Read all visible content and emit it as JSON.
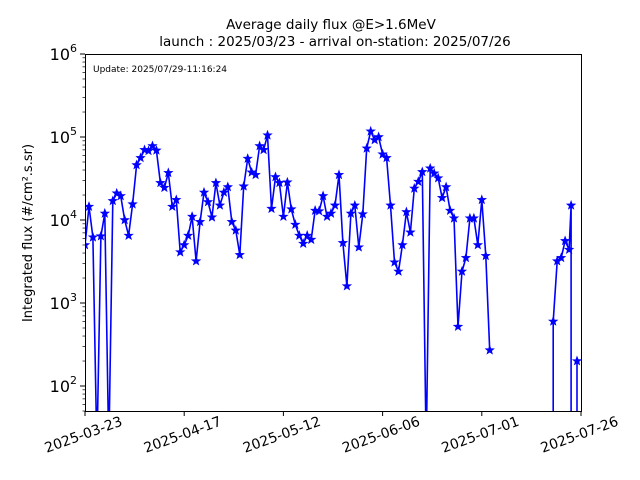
{
  "chart_data": {
    "type": "line",
    "title_line1": "Average daily flux @E>1.6MeV",
    "title_line2": "launch : 2025/03/23 - arrival on-station: 2025/07/26",
    "annotation": "Update: 2025/07/29-11:16:24",
    "ylabel": "Integrated flux (#/cm².s.sr)",
    "yscale": "log",
    "ylim": [
      50,
      1000000
    ],
    "xlim": [
      "2025-03-23",
      "2025-07-26"
    ],
    "xticks": [
      "2025-03-23",
      "2025-04-17",
      "2025-05-12",
      "2025-06-06",
      "2025-07-01",
      "2025-07-26"
    ],
    "yticks": [
      {
        "value": 100,
        "base": "10",
        "exp": "2"
      },
      {
        "value": 1000,
        "base": "10",
        "exp": "3"
      },
      {
        "value": 10000,
        "base": "10",
        "exp": "4"
      },
      {
        "value": 100000,
        "base": "10",
        "exp": "5"
      },
      {
        "value": 1000000,
        "base": "10",
        "exp": "6"
      }
    ],
    "grid": false,
    "legend": "none",
    "color": "#0000ff",
    "marker": "star",
    "series": [
      {
        "x": [
          "2025-03-23",
          "2025-03-24",
          "2025-03-25",
          "2025-03-26",
          "2025-03-27",
          "2025-03-28",
          "2025-03-29",
          "2025-03-30",
          "2025-03-31",
          "2025-04-01",
          "2025-04-02",
          "2025-04-03",
          "2025-04-04",
          "2025-04-05",
          "2025-04-06",
          "2025-04-07",
          "2025-04-08",
          "2025-04-09",
          "2025-04-10",
          "2025-04-11",
          "2025-04-12",
          "2025-04-13",
          "2025-04-14",
          "2025-04-15",
          "2025-04-16",
          "2025-04-17",
          "2025-04-18",
          "2025-04-19",
          "2025-04-20",
          "2025-04-21",
          "2025-04-22",
          "2025-04-23",
          "2025-04-24",
          "2025-04-25",
          "2025-04-26",
          "2025-04-27",
          "2025-04-28",
          "2025-04-29",
          "2025-04-30",
          "2025-05-01",
          "2025-05-02",
          "2025-05-03",
          "2025-05-04",
          "2025-05-05",
          "2025-05-06",
          "2025-05-07",
          "2025-05-08",
          "2025-05-09",
          "2025-05-10",
          "2025-05-11",
          "2025-05-12",
          "2025-05-13",
          "2025-05-14",
          "2025-05-15",
          "2025-05-16",
          "2025-05-17",
          "2025-05-18",
          "2025-05-19",
          "2025-05-20",
          "2025-05-21",
          "2025-05-22",
          "2025-05-23",
          "2025-05-24",
          "2025-05-25",
          "2025-05-26",
          "2025-05-27",
          "2025-05-28",
          "2025-05-29",
          "2025-05-30",
          "2025-05-31",
          "2025-06-01",
          "2025-06-02",
          "2025-06-03",
          "2025-06-04",
          "2025-06-05",
          "2025-06-06",
          "2025-06-07",
          "2025-06-08",
          "2025-06-09",
          "2025-06-10",
          "2025-06-11",
          "2025-06-12",
          "2025-06-13",
          "2025-06-14",
          "2025-06-15",
          "2025-06-16",
          "2025-06-17",
          "2025-06-18",
          "2025-06-19",
          "2025-06-20",
          "2025-06-21",
          "2025-06-22",
          "2025-06-23",
          "2025-06-24",
          "2025-06-25",
          "2025-06-26",
          "2025-06-27",
          "2025-06-28",
          "2025-06-29",
          "2025-06-30",
          "2025-07-01",
          "2025-07-02",
          "2025-07-03",
          "2025-07-04",
          "2025-07-05",
          "2025-07-06",
          "2025-07-07",
          "2025-07-08",
          "2025-07-09",
          "2025-07-10",
          "2025-07-11",
          "2025-07-12",
          "2025-07-13",
          "2025-07-14",
          "2025-07-15",
          "2025-07-16",
          "2025-07-17",
          "2025-07-18",
          "2025-07-19",
          "2025-07-20",
          "2025-07-21",
          "2025-07-22",
          "2025-07-23",
          "2025-07-24",
          "2025-07-25",
          "2025-07-26"
        ],
        "y": [
          5000,
          14500,
          6200,
          0.01,
          6400,
          12000,
          0.01,
          17000,
          21000,
          19500,
          10000,
          6500,
          15500,
          46000,
          56000,
          70000,
          68000,
          78000,
          69000,
          28000,
          24500,
          37000,
          14500,
          17500,
          4100,
          5000,
          6500,
          11000,
          3200,
          9500,
          21500,
          16500,
          10800,
          28000,
          15000,
          21500,
          25000,
          9500,
          7500,
          3800,
          25500,
          55000,
          37500,
          35000,
          78000,
          70000,
          105000,
          13700,
          33000,
          28000,
          11000,
          28500,
          13500,
          8800,
          6500,
          5200,
          6500,
          5800,
          13000,
          12800,
          19500,
          11000,
          12000,
          15000,
          35000,
          5300,
          1600,
          12000,
          15000,
          4700,
          11800,
          73000,
          117000,
          92000,
          100000,
          62000,
          56000,
          15000,
          3100,
          2400,
          5000,
          12500,
          7100,
          24000,
          29000,
          38000,
          0.01,
          42000,
          36500,
          32000,
          18500,
          25000,
          13000,
          10500,
          520,
          2400,
          3500,
          10500,
          10500,
          5000,
          17500,
          3700,
          270,
          null,
          null,
          null,
          null,
          null,
          null,
          null,
          null,
          null,
          null,
          null,
          null,
          null,
          null,
          null,
          null,
          null,
          null,
          null,
          null,
          null,
          null,
          null
        ]
      }
    ]
  }
}
